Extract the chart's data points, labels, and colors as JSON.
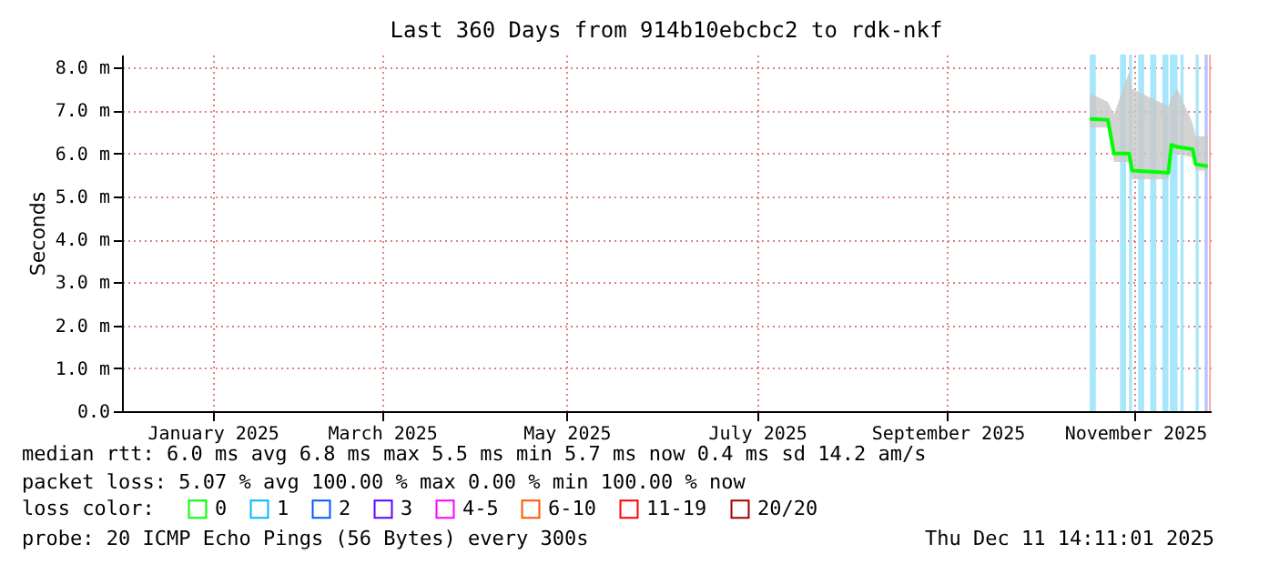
{
  "chart_data": {
    "type": "line",
    "title": "Last 360 Days from 914b10ebcbc2 to rdk-nkf",
    "ylabel": "Seconds",
    "x": [
      "2025-11-01",
      "2025-11-07",
      "2025-11-09",
      "2025-11-14",
      "2025-11-15",
      "2025-11-27",
      "2025-11-28",
      "2025-11-30",
      "2025-12-05",
      "2025-12-06",
      "2025-12-10"
    ],
    "series": [
      {
        "name": "0",
        "color": "#00ff00",
        "values": [
          6.8,
          6.78,
          6.0,
          6.0,
          5.6,
          5.55,
          6.2,
          6.15,
          6.1,
          5.75,
          5.7
        ],
        "lower": [
          6.6,
          6.6,
          5.8,
          5.8,
          5.4,
          5.4,
          6.0,
          6.0,
          5.9,
          5.6,
          5.6
        ],
        "upper": [
          7.4,
          7.2,
          6.9,
          7.9,
          7.5,
          7.1,
          7.3,
          7.5,
          6.7,
          6.4,
          6.4
        ]
      },
      {
        "name": "1",
        "color": "#00b8ff",
        "values": [
          null,
          null,
          null,
          null,
          null,
          null,
          null,
          null,
          null,
          null,
          null
        ]
      },
      {
        "name": "2",
        "color": "#0059ff",
        "values": [
          null,
          null,
          null,
          null,
          null,
          null,
          null,
          null,
          null,
          null,
          null
        ]
      },
      {
        "name": "3",
        "color": "#5e00ff",
        "values": [
          null,
          null,
          null,
          null,
          null,
          null,
          null,
          null,
          null,
          null,
          null
        ]
      },
      {
        "name": "4-5",
        "color": "#ff00ff",
        "values": [
          null,
          null,
          null,
          null,
          null,
          null,
          null,
          null,
          null,
          null,
          null
        ]
      },
      {
        "name": "6-10",
        "color": "#ff5500",
        "values": [
          null,
          null,
          null,
          null,
          null,
          null,
          null,
          null,
          null,
          null,
          null
        ]
      },
      {
        "name": "11-19",
        "color": "#ff0000",
        "values": [
          null,
          null,
          null,
          null,
          null,
          null,
          null,
          null,
          null,
          null,
          null
        ]
      },
      {
        "name": "20/20",
        "color": "#a10000",
        "values": [
          null,
          null,
          null,
          null,
          null,
          null,
          null,
          null,
          null,
          null,
          null
        ]
      }
    ],
    "legend_title": "loss color:",
    "legend": "bottom",
    "bands": [
      {
        "axis": "x",
        "from": "2025-11-01",
        "to": "2025-11-03",
        "color": "#a8e6fb"
      },
      {
        "axis": "x",
        "from": "2025-11-11",
        "to": "2025-11-13",
        "color": "#a8e6fb"
      },
      {
        "axis": "x",
        "from": "2025-11-14",
        "to": "2025-11-15",
        "color": "#a8e6fb"
      },
      {
        "axis": "x",
        "from": "2025-11-17",
        "to": "2025-11-19",
        "color": "#a8e6fb"
      },
      {
        "axis": "x",
        "from": "2025-11-21",
        "to": "2025-11-23",
        "color": "#a8e6fb"
      },
      {
        "axis": "x",
        "from": "2025-11-25",
        "to": "2025-11-27",
        "color": "#a8e6fb"
      },
      {
        "axis": "x",
        "from": "2025-11-27T12:00",
        "to": "2025-11-30",
        "color": "#a8e6fb"
      },
      {
        "axis": "x",
        "from": "2025-12-01",
        "to": "2025-12-02",
        "color": "#a8e6fb"
      },
      {
        "axis": "x",
        "from": "2025-12-06",
        "to": "2025-12-07",
        "color": "#a8e6fb"
      },
      {
        "axis": "x",
        "from": "2025-12-09",
        "to": "2025-12-10",
        "color": "#b4c4fb"
      },
      {
        "axis": "x",
        "from": "2025-12-10T12:00",
        "to": "2025-12-11",
        "color": "#fb9a9a"
      }
    ],
    "xlim": [
      "2024-12-16",
      "2025-12-11"
    ],
    "xticks": [
      {
        "value": "2025-01-15",
        "label": "January 2025"
      },
      {
        "value": "2025-03-12",
        "label": "March 2025"
      },
      {
        "value": "2025-05-12",
        "label": "May 2025"
      },
      {
        "value": "2025-07-14",
        "label": "July 2025"
      },
      {
        "value": "2025-09-15",
        "label": "September 2025"
      },
      {
        "value": "2025-11-16",
        "label": "November 2025"
      }
    ],
    "ylim": [
      0,
      8.3
    ],
    "yticks": [
      {
        "value": 0,
        "label": "0.0"
      },
      {
        "value": 1,
        "label": "1.0 m"
      },
      {
        "value": 2,
        "label": "2.0 m"
      },
      {
        "value": 3,
        "label": "3.0 m"
      },
      {
        "value": 4,
        "label": "4.0 m"
      },
      {
        "value": 5,
        "label": "5.0 m"
      },
      {
        "value": 6,
        "label": "6.0 m"
      },
      {
        "value": 7,
        "label": "7.0 m"
      },
      {
        "value": 8,
        "label": "8.0 m"
      }
    ],
    "grid": true,
    "annotations": [
      "median rtt: 6.0 ms avg 6.8 ms max 5.5 ms min 5.7 ms now 0.4 ms sd 14.2 am/s",
      "packet loss: 5.07 % avg 100.00 % max 0.00 % min 100.00 % now",
      "probe: 20 ICMP Echo Pings (56 Bytes) every 300s",
      "Thu Dec 11 14:11:01 2025"
    ]
  }
}
